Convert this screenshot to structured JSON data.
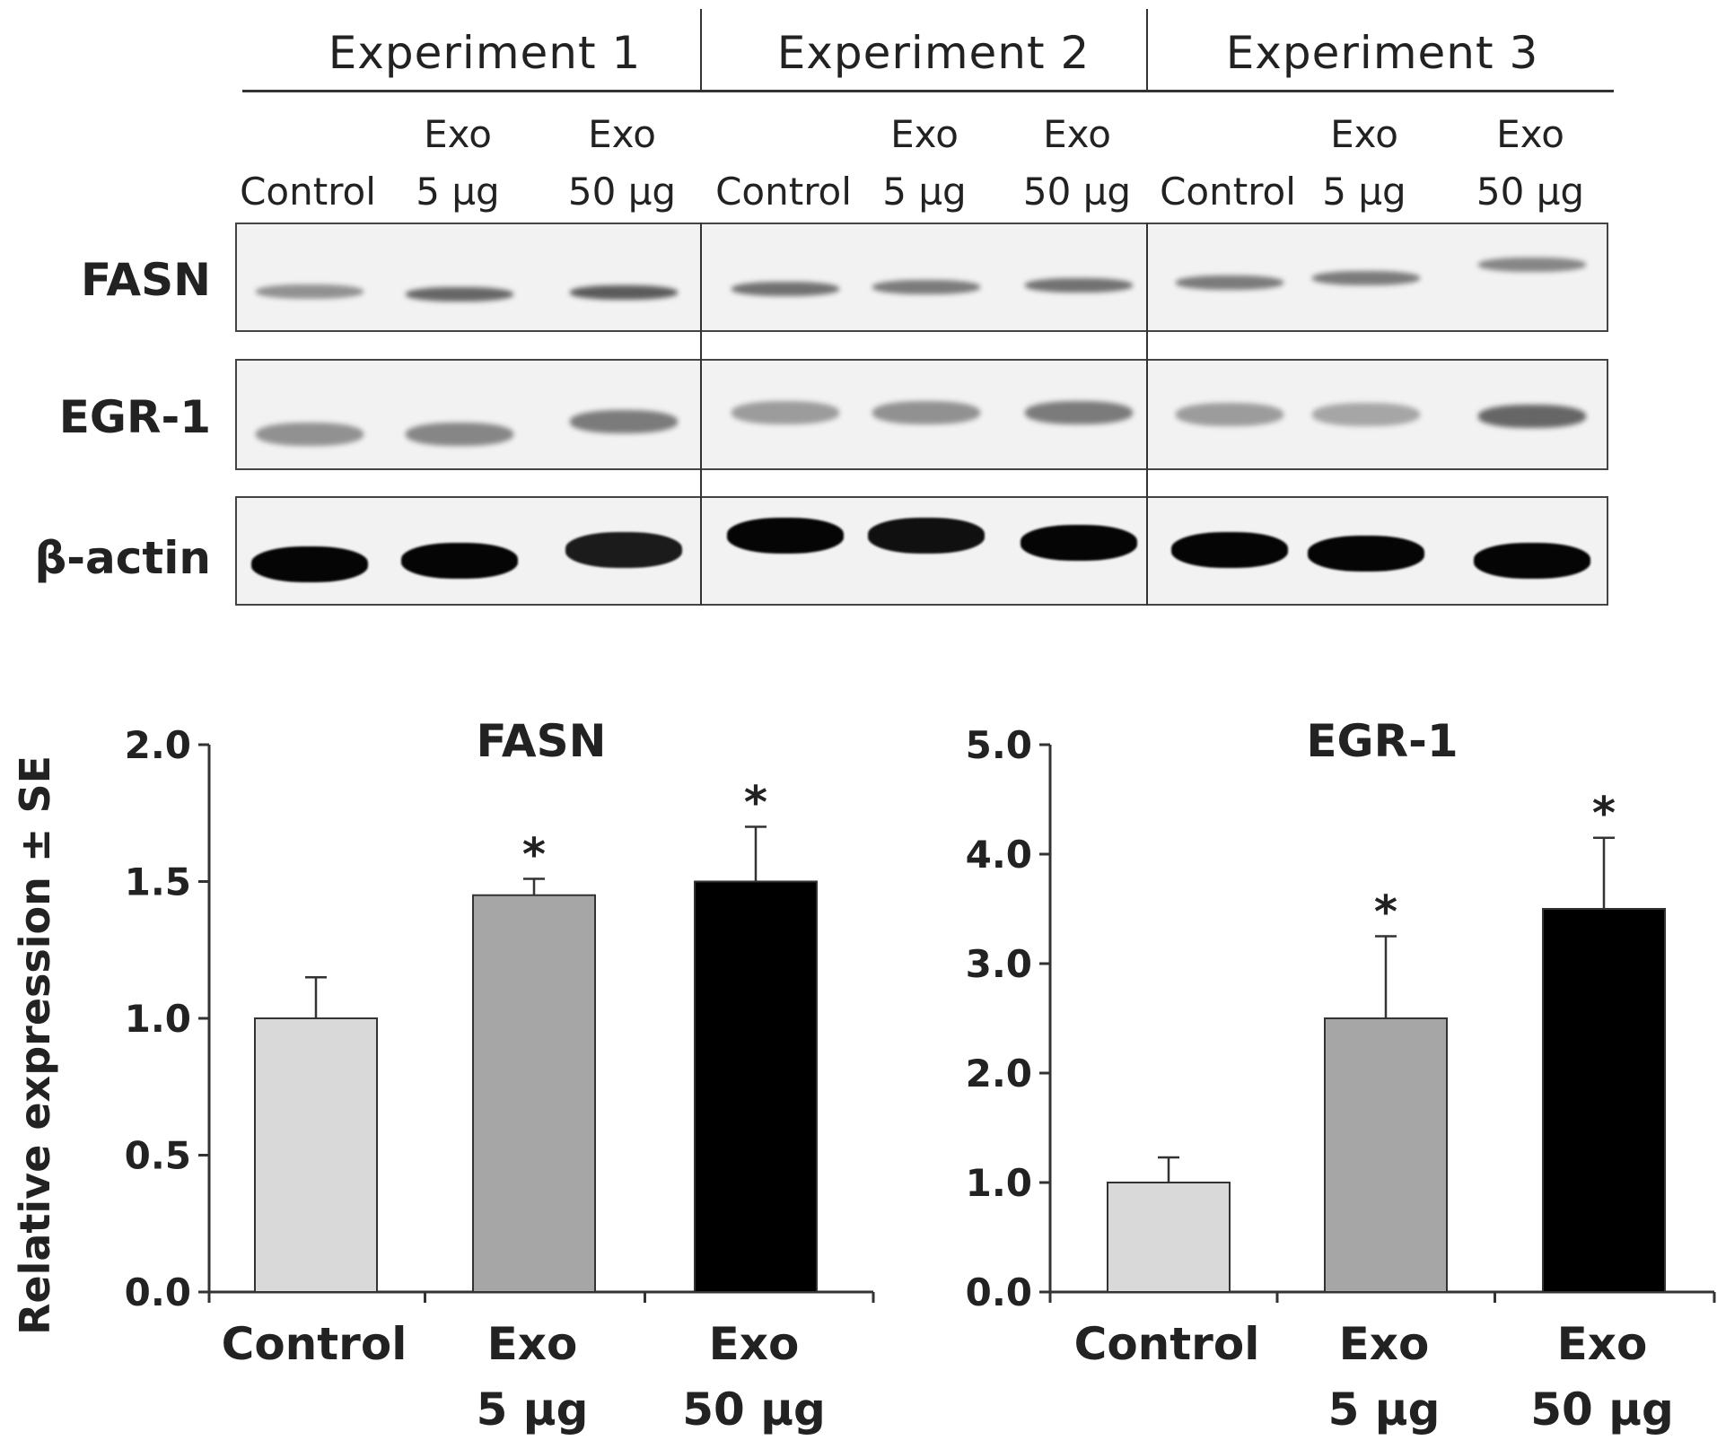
{
  "blot": {
    "experiments": [
      "Experiment  1",
      "Experiment  2",
      "Experiment  3"
    ],
    "lanes": [
      {
        "line1": "",
        "line2": "Control"
      },
      {
        "line1": "Exo",
        "line2": "5 µg"
      },
      {
        "line1": "Exo",
        "line2": "50 µg"
      }
    ],
    "proteins": [
      {
        "name": "FASN",
        "intensity": [
          0.35,
          0.55,
          0.6,
          0.5,
          0.45,
          0.5,
          0.45,
          0.45,
          0.4
        ]
      },
      {
        "name": "EGR-1",
        "intensity": [
          0.35,
          0.4,
          0.45,
          0.3,
          0.35,
          0.45,
          0.3,
          0.25,
          0.55
        ]
      },
      {
        "name": "β-actin",
        "intensity": [
          1,
          1,
          0.9,
          1,
          0.95,
          1,
          1,
          1,
          1
        ]
      }
    ]
  },
  "chart_data": [
    {
      "type": "bar",
      "title": "FASN",
      "categories": [
        "Control",
        "Exo 5 µg",
        "Exo 50 µg"
      ],
      "category_lines": [
        [
          "Control",
          ""
        ],
        [
          "Exo",
          "5 µg"
        ],
        [
          "Exo",
          "50 µg"
        ]
      ],
      "values": [
        1.0,
        1.45,
        1.5
      ],
      "errors": [
        0.15,
        0.06,
        0.2
      ],
      "significance": [
        "",
        "*",
        "*"
      ],
      "bar_colors": [
        "#d9d9d9",
        "#a6a6a6",
        "#000000"
      ],
      "ylabel": "Relative expression ± SE",
      "ylim": [
        0,
        2.0
      ],
      "yticks": [
        "0.0",
        "0.5",
        "1.0",
        "1.5",
        "2.0"
      ],
      "ytick_values": [
        0,
        0.5,
        1.0,
        1.5,
        2.0
      ]
    },
    {
      "type": "bar",
      "title": "EGR-1",
      "categories": [
        "Control",
        "Exo 5 µg",
        "Exo 50 µg"
      ],
      "category_lines": [
        [
          "Control",
          ""
        ],
        [
          "Exo",
          "5 µg"
        ],
        [
          "Exo",
          "50 µg"
        ]
      ],
      "values": [
        1.0,
        2.5,
        3.5
      ],
      "errors": [
        0.23,
        0.75,
        0.65
      ],
      "significance": [
        "",
        "*",
        "*"
      ],
      "bar_colors": [
        "#d9d9d9",
        "#a6a6a6",
        "#000000"
      ],
      "ylabel": "",
      "ylim": [
        0,
        5.0
      ],
      "yticks": [
        "0.0",
        "1.0",
        "2.0",
        "3.0",
        "4.0",
        "5.0"
      ],
      "ytick_values": [
        0,
        1.0,
        2.0,
        3.0,
        4.0,
        5.0
      ]
    }
  ]
}
